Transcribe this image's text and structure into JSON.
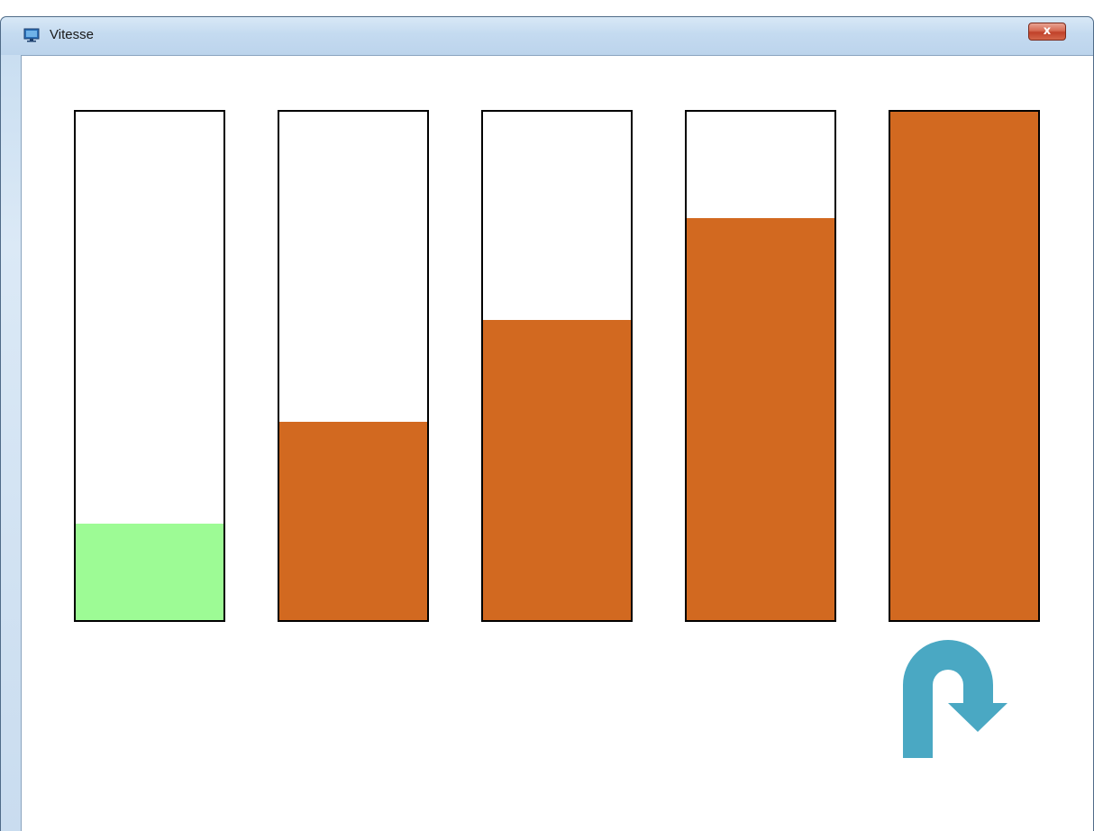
{
  "window": {
    "title": "Vitesse",
    "close_label": "x",
    "app_icon": "monitor-icon"
  },
  "bars": [
    {
      "level": 0.19,
      "color": "#9dfb95"
    },
    {
      "level": 0.39,
      "color": "#d26920"
    },
    {
      "level": 0.59,
      "color": "#d26920"
    },
    {
      "level": 0.79,
      "color": "#d26920"
    },
    {
      "level": 1.0,
      "color": "#d26920"
    }
  ],
  "reverse_button": {
    "icon": "u-turn-arrow-icon",
    "color": "#4aa8c3"
  }
}
